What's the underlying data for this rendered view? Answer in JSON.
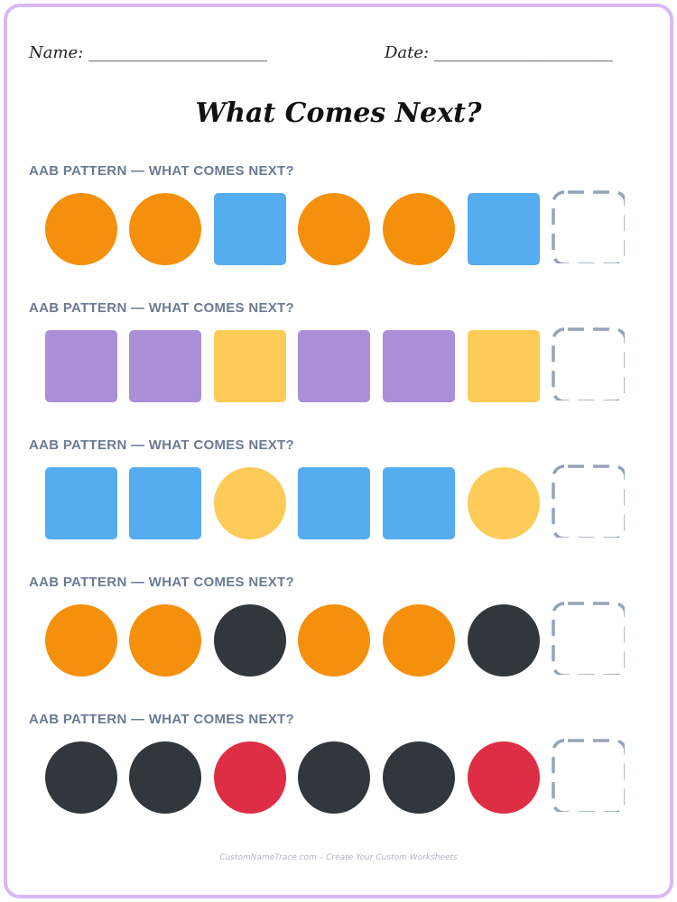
{
  "header": {
    "name_label": "Name: ______________________",
    "date_label": "Date: ______________________"
  },
  "title": "What Comes Next?",
  "colors": {
    "orange": "#f4900c",
    "blue": "#55acee",
    "purple": "#aa8ed6",
    "yellow": "#fdcb58",
    "black": "#31373d",
    "red": "#dd2e44",
    "blank_outline": "#94a3b8",
    "border": "#d9b8f7"
  },
  "rows": [
    {
      "label": "AAB PATTERN — WHAT COMES NEXT?",
      "shapes": [
        {
          "shape": "circle",
          "color": "orange"
        },
        {
          "shape": "circle",
          "color": "orange"
        },
        {
          "shape": "square",
          "color": "blue"
        },
        {
          "shape": "circle",
          "color": "orange"
        },
        {
          "shape": "circle",
          "color": "orange"
        },
        {
          "shape": "square",
          "color": "blue"
        }
      ]
    },
    {
      "label": "AAB PATTERN — WHAT COMES NEXT?",
      "shapes": [
        {
          "shape": "square",
          "color": "purple"
        },
        {
          "shape": "square",
          "color": "purple"
        },
        {
          "shape": "square",
          "color": "yellow"
        },
        {
          "shape": "square",
          "color": "purple"
        },
        {
          "shape": "square",
          "color": "purple"
        },
        {
          "shape": "square",
          "color": "yellow"
        }
      ]
    },
    {
      "label": "AAB PATTERN — WHAT COMES NEXT?",
      "shapes": [
        {
          "shape": "square",
          "color": "blue"
        },
        {
          "shape": "square",
          "color": "blue"
        },
        {
          "shape": "circle",
          "color": "yellow"
        },
        {
          "shape": "square",
          "color": "blue"
        },
        {
          "shape": "square",
          "color": "blue"
        },
        {
          "shape": "circle",
          "color": "yellow"
        }
      ]
    },
    {
      "label": "AAB PATTERN — WHAT COMES NEXT?",
      "shapes": [
        {
          "shape": "circle",
          "color": "orange"
        },
        {
          "shape": "circle",
          "color": "orange"
        },
        {
          "shape": "circle",
          "color": "black"
        },
        {
          "shape": "circle",
          "color": "orange"
        },
        {
          "shape": "circle",
          "color": "orange"
        },
        {
          "shape": "circle",
          "color": "black"
        }
      ]
    },
    {
      "label": "AAB PATTERN — WHAT COMES NEXT?",
      "shapes": [
        {
          "shape": "circle",
          "color": "black"
        },
        {
          "shape": "circle",
          "color": "black"
        },
        {
          "shape": "circle",
          "color": "red"
        },
        {
          "shape": "circle",
          "color": "black"
        },
        {
          "shape": "circle",
          "color": "black"
        },
        {
          "shape": "circle",
          "color": "red"
        }
      ]
    }
  ],
  "footer": "CustomNameTrace.com – Create Your Custom Worksheets"
}
